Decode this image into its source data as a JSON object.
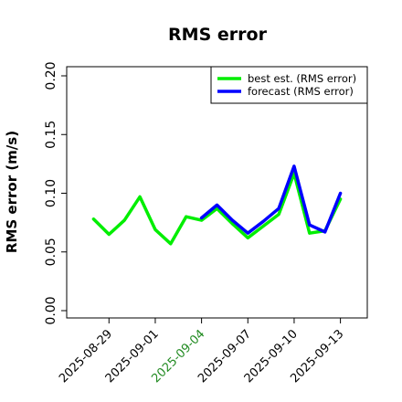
{
  "chart_data": {
    "type": "line",
    "title": "RMS error",
    "xlabel": "",
    "ylabel": "RMS error (m/s)",
    "ylim": [
      0.0,
      0.21
    ],
    "xlim": [
      "2025-08-27",
      "2025-09-14"
    ],
    "yticks": [
      "0.00",
      "0.05",
      "0.10",
      "0.15",
      "0.20"
    ],
    "xticks": [
      {
        "label": "2025-08-29",
        "date": "2025-08-29",
        "color": "#000000"
      },
      {
        "label": "2025-09-01",
        "date": "2025-09-01",
        "color": "#000000"
      },
      {
        "label": "2025-09-04",
        "date": "2025-09-04",
        "color": "#228b22"
      },
      {
        "label": "2025-09-07",
        "date": "2025-09-07",
        "color": "#000000"
      },
      {
        "label": "2025-09-10",
        "date": "2025-09-10",
        "color": "#000000"
      },
      {
        "label": "2025-09-13",
        "date": "2025-09-13",
        "color": "#000000"
      }
    ],
    "grid": false,
    "legend_position": "top-right",
    "series": [
      {
        "name": "best est. (RMS error)",
        "color": "#00ee00",
        "x": [
          "2025-08-28",
          "2025-08-29",
          "2025-08-30",
          "2025-08-31",
          "2025-09-01",
          "2025-09-02",
          "2025-09-03",
          "2025-09-04",
          "2025-09-05",
          "2025-09-06",
          "2025-09-07",
          "2025-09-08",
          "2025-09-09",
          "2025-09-10",
          "2025-09-11",
          "2025-09-12",
          "2025-09-13"
        ],
        "values": [
          0.078,
          0.065,
          0.077,
          0.097,
          0.069,
          0.057,
          0.08,
          0.077,
          0.087,
          0.074,
          0.062,
          0.072,
          0.082,
          0.117,
          0.066,
          0.068,
          0.095
        ]
      },
      {
        "name": "forecast (RMS error)",
        "color": "#0000ff",
        "x": [
          "2025-09-04",
          "2025-09-05",
          "2025-09-06",
          "2025-09-07",
          "2025-09-08",
          "2025-09-09",
          "2025-09-10",
          "2025-09-11",
          "2025-09-12",
          "2025-09-13"
        ],
        "values": [
          0.079,
          0.09,
          0.077,
          0.066,
          0.076,
          0.087,
          0.123,
          0.073,
          0.067,
          0.1
        ]
      }
    ]
  }
}
